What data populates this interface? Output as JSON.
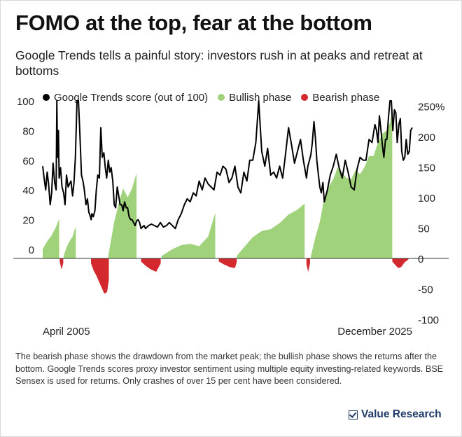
{
  "header": {
    "title": "FOMO at the top, fear at the bottom",
    "subtitle": "Google Trends tells a painful story: investors rush in at peaks and retreat at bottoms"
  },
  "legend": {
    "items": [
      {
        "label": "Google Trends score (out of 100)",
        "color": "#000000"
      },
      {
        "label": "Bullish phase",
        "color": "#9fd27a"
      },
      {
        "label": "Bearish phase",
        "color": "#d4282f"
      }
    ]
  },
  "footer": {
    "note": "The bearish phase shows the drawdown from the market peak; the bullish phase shows the returns after the bottom. Google Trends scores proxy investor sentiment using multiple equity investing-related keywords. BSE Sensex is used for returns. Only crashes of over 15 per cent have been considered.",
    "brand": "Value Research",
    "brand_icon": "checkbox-icon"
  },
  "chart_data": {
    "type": "line+area",
    "x_start": "April 2005",
    "x_end": "December 2025",
    "x_tick_labels": [
      "April 2005",
      "December 2025"
    ],
    "left_axis": {
      "label": "",
      "ticks": [
        "0",
        "20",
        "40",
        "60",
        "80",
        "100"
      ],
      "range": [
        0,
        100
      ]
    },
    "right_axis": {
      "label": "",
      "ticks": [
        "-100",
        "-50",
        "0",
        "50",
        "100",
        "150",
        "200",
        "250%"
      ],
      "range": [
        -100,
        250
      ]
    },
    "grid": false,
    "legend_position": "top",
    "colors": {
      "trends": "#000000",
      "bullish": "#9fd27a",
      "bearish": "#d4282f"
    },
    "trends_series": {
      "name": "Google Trends score (out of 100)",
      "x": [
        2005.25,
        2005.33,
        2005.42,
        2005.5,
        2005.58,
        2005.67,
        2005.75,
        2005.83,
        2005.92,
        2006.0,
        2006.04,
        2006.08,
        2006.13,
        2006.17,
        2006.25,
        2006.33,
        2006.42,
        2006.5,
        2006.58,
        2006.67,
        2006.75,
        2006.83,
        2006.92,
        2007.0,
        2007.08,
        2007.17,
        2007.25,
        2007.33,
        2007.42,
        2007.5,
        2007.58,
        2007.67,
        2007.75,
        2007.83,
        2007.92,
        2007.96,
        2008.0,
        2008.08,
        2008.17,
        2008.25,
        2008.33,
        2008.42,
        2008.5,
        2008.58,
        2008.67,
        2008.75,
        2008.83,
        2008.92,
        2009.0,
        2009.08,
        2009.17,
        2009.25,
        2009.33,
        2009.42,
        2009.5,
        2009.58,
        2009.67,
        2009.75,
        2009.83,
        2009.92,
        2010.0,
        2010.08,
        2010.17,
        2010.25,
        2010.33,
        2010.42,
        2010.5,
        2010.58,
        2010.67,
        2010.75,
        2010.83,
        2010.92,
        2011.0,
        2011.17,
        2011.33,
        2011.5,
        2011.67,
        2011.83,
        2012.0,
        2012.17,
        2012.33,
        2012.5,
        2012.67,
        2012.83,
        2013.0,
        2013.17,
        2013.33,
        2013.5,
        2013.67,
        2013.83,
        2014.0,
        2014.17,
        2014.33,
        2014.5,
        2014.67,
        2014.83,
        2015.0,
        2015.17,
        2015.33,
        2015.5,
        2015.67,
        2015.83,
        2016.0,
        2016.17,
        2016.33,
        2016.5,
        2016.67,
        2016.83,
        2017.0,
        2017.17,
        2017.33,
        2017.5,
        2017.67,
        2017.83,
        2018.0,
        2018.17,
        2018.33,
        2018.5,
        2018.67,
        2018.83,
        2019.0,
        2019.17,
        2019.33,
        2019.5,
        2019.67,
        2019.83,
        2020.0,
        2020.08,
        2020.17,
        2020.25,
        2020.33,
        2020.42,
        2020.5,
        2020.58,
        2020.67,
        2020.75,
        2020.83,
        2020.92,
        2021.0,
        2021.17,
        2021.33,
        2021.5,
        2021.67,
        2021.83,
        2022.0,
        2022.17,
        2022.33,
        2022.5,
        2022.67,
        2022.83,
        2023.0,
        2023.17,
        2023.33,
        2023.5,
        2023.67,
        2023.83,
        2023.92,
        2024.0,
        2024.08,
        2024.17,
        2024.25,
        2024.33,
        2024.42,
        2024.5,
        2024.58,
        2024.67,
        2024.75,
        2024.83,
        2024.92,
        2025.0,
        2025.08,
        2025.17,
        2025.25,
        2025.33,
        2025.42,
        2025.5,
        2025.58,
        2025.67,
        2025.75,
        2025.83,
        2025.92
      ],
      "y": [
        56,
        48,
        40,
        52,
        44,
        30,
        38,
        58,
        45,
        40,
        100,
        62,
        80,
        48,
        55,
        42,
        38,
        30,
        50,
        42,
        44,
        46,
        36,
        45,
        62,
        100,
        100,
        78,
        50,
        46,
        40,
        30,
        34,
        25,
        22,
        20,
        24,
        22,
        26,
        40,
        50,
        48,
        82,
        62,
        65,
        55,
        48,
        60,
        52,
        55,
        46,
        30,
        28,
        42,
        36,
        30,
        30,
        26,
        32,
        28,
        28,
        22,
        20,
        20,
        18,
        16,
        19,
        20,
        18,
        14,
        15,
        16,
        14,
        16,
        17,
        16,
        15,
        18,
        15,
        16,
        18,
        16,
        14,
        20,
        24,
        30,
        34,
        32,
        38,
        36,
        46,
        40,
        48,
        44,
        42,
        40,
        52,
        50,
        56,
        54,
        45,
        48,
        56,
        42,
        38,
        52,
        46,
        60,
        60,
        72,
        100,
        66,
        56,
        68,
        50,
        52,
        48,
        56,
        48,
        64,
        82,
        70,
        58,
        66,
        74,
        60,
        48,
        56,
        60,
        64,
        72,
        86,
        75,
        60,
        50,
        42,
        38,
        45,
        32,
        40,
        50,
        56,
        64,
        55,
        48,
        60,
        52,
        42,
        40,
        54,
        62,
        60,
        60,
        74,
        72,
        84,
        80,
        72,
        90,
        80,
        70,
        62,
        74,
        74,
        88,
        100,
        100,
        80,
        94,
        92,
        72,
        84,
        88,
        66,
        60,
        62,
        74,
        64,
        66,
        80,
        82
      ]
    },
    "bullish_phases": [
      {
        "x": [
          2005.25,
          2005.5,
          2005.75,
          2006.0,
          2006.17
        ],
        "y": [
          15,
          28,
          38,
          52,
          65
        ]
      },
      {
        "x": [
          2006.42,
          2006.58,
          2006.75,
          2006.92,
          2007.0,
          2007.1
        ],
        "y": [
          4,
          18,
          28,
          36,
          44,
          52
        ]
      },
      {
        "x": [
          2008.92,
          2009.25,
          2009.5,
          2009.75,
          2010.0,
          2010.25,
          2010.5
        ],
        "y": [
          4,
          60,
          90,
          115,
          100,
          115,
          140
        ]
      },
      {
        "x": [
          2011.9,
          2012.5,
          2013.0,
          2013.5,
          2014.0,
          2014.5,
          2014.75,
          2014.9
        ],
        "y": [
          4,
          15,
          22,
          24,
          20,
          36,
          60,
          75
        ]
      },
      {
        "x": [
          2016.1,
          2016.5,
          2017.0,
          2017.5,
          2018.0,
          2018.5,
          2019.0,
          2019.5,
          2019.9
        ],
        "y": [
          4,
          18,
          35,
          45,
          48,
          58,
          72,
          80,
          90
        ]
      },
      {
        "x": [
          2020.25,
          2020.5,
          2020.75,
          2021.0,
          2021.25,
          2021.5,
          2021.75,
          2022.0,
          2022.25,
          2022.5,
          2022.75,
          2023.0,
          2023.25,
          2023.5,
          2023.75,
          2024.0,
          2024.25,
          2024.5,
          2024.7,
          2024.8
        ],
        "y": [
          4,
          35,
          60,
          100,
          118,
          130,
          150,
          140,
          132,
          130,
          145,
          138,
          150,
          168,
          168,
          190,
          205,
          210,
          225,
          245
        ]
      }
    ],
    "bearish_phases": [
      {
        "x": [
          2006.2,
          2006.3,
          2006.4
        ],
        "y": [
          -5,
          -18,
          -8
        ]
      },
      {
        "x": [
          2007.95,
          2008.1,
          2008.25,
          2008.5,
          2008.7,
          2008.85,
          2008.95
        ],
        "y": [
          -8,
          -20,
          -28,
          -45,
          -58,
          -55,
          -35
        ]
      },
      {
        "x": [
          2010.75,
          2011.0,
          2011.3,
          2011.6,
          2011.85
        ],
        "y": [
          -5,
          -12,
          -18,
          -22,
          -8
        ]
      },
      {
        "x": [
          2015.1,
          2015.4,
          2015.7,
          2016.0,
          2016.1
        ],
        "y": [
          -5,
          -10,
          -14,
          -16,
          -6
        ]
      },
      {
        "x": [
          2020.0,
          2020.1,
          2020.2
        ],
        "y": [
          -10,
          -22,
          -8
        ]
      },
      {
        "x": [
          2024.8,
          2025.0,
          2025.15,
          2025.3,
          2025.5,
          2025.7
        ],
        "y": [
          -5,
          -12,
          -16,
          -14,
          -6,
          -2
        ]
      }
    ]
  }
}
